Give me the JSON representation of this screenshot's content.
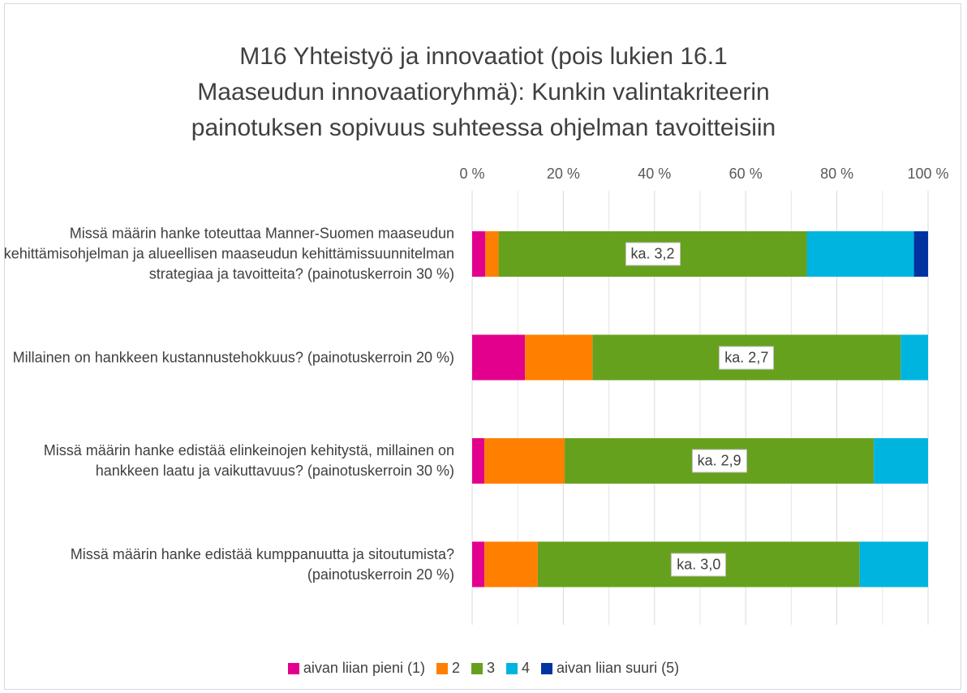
{
  "chart_data": {
    "type": "stacked-bar-100",
    "orientation": "horizontal",
    "title": [
      "M16 Yhteistyö ja innovaatiot (pois lukien 16.1",
      "Maaseudun innovaatioryhmä): Kunkin valintakriteerin",
      "painotuksen sopivuus suhteessa ohjelman tavoitteisiin"
    ],
    "categories": [
      "Missä määrin hanke toteuttaa Manner-Suomen maaseudun kehittämisohjelman ja alueellisen maaseudun kehittämissuunnitelman strategiaa ja tavoitteita? (painotuskerroin 30 %)",
      "Millainen on hankkeen kustannustehokkuus? (painotuskerroin 20 %)",
      "Missä määrin hanke edistää elinkeinojen kehitystä, millainen on hankkeen laatu ja vaikuttavuus? (painotuskerroin 30 %)",
      "Missä määrin hanke edistää kumppanuutta ja sitoutumista? (painotuskerroin 20 %)"
    ],
    "series": [
      {
        "name": "aivan liian pieni (1)",
        "color": "#e3008c",
        "values": [
          2.9,
          11.6,
          2.7,
          2.7
        ]
      },
      {
        "name": "2",
        "color": "#ff8000",
        "values": [
          2.9,
          14.8,
          17.6,
          11.7
        ]
      },
      {
        "name": "3",
        "color": "#66a11e",
        "values": [
          67.6,
          67.6,
          67.8,
          70.6
        ]
      },
      {
        "name": "4",
        "color": "#00b4e0",
        "values": [
          23.5,
          6.0,
          11.9,
          15.0
        ]
      },
      {
        "name": "aivan liian suuri (5)",
        "color": "#0033a0",
        "values": [
          3.1,
          0,
          0,
          0
        ]
      }
    ],
    "annotations": [
      "ka. 3,2",
      "ka. 2,7",
      "ka. 2,9",
      "ka. 3,0"
    ],
    "xlim": [
      0,
      100
    ],
    "xticks": [
      {
        "value": 0,
        "label": "0 %"
      },
      {
        "value": 20,
        "label": "20 %"
      },
      {
        "value": 40,
        "label": "40 %"
      },
      {
        "value": 60,
        "label": "60 %"
      },
      {
        "value": 80,
        "label": "80 %"
      },
      {
        "value": 100,
        "label": "100 %"
      }
    ],
    "xticks_minor": [
      10,
      30,
      50,
      70,
      90
    ],
    "grid": true,
    "legend": "bottom"
  }
}
